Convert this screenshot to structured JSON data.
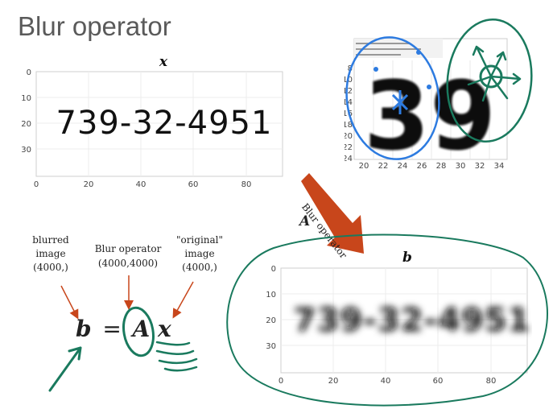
{
  "slide": {
    "title": "Blur operator",
    "top_plot": {
      "title": "x",
      "text": "739-32-4951",
      "xticks": [
        "0",
        "20",
        "40",
        "60",
        "80"
      ],
      "yticks": [
        "0",
        "10",
        "20",
        "30"
      ]
    },
    "bottom_plot": {
      "title": "b",
      "text": "739-32-4951",
      "xticks": [
        "0",
        "20",
        "40",
        "60",
        "80"
      ],
      "yticks": [
        "0",
        "10",
        "20",
        "30"
      ]
    },
    "zoom_inset": {
      "digits": "39",
      "xticks": [
        "20",
        "22",
        "24",
        "26",
        "28",
        "30",
        "32",
        "34"
      ],
      "yticks": [
        "8",
        "10",
        "12",
        "14",
        "16",
        "18",
        "20",
        "22",
        "24"
      ]
    },
    "arrow": {
      "label": "Blur operator",
      "letter": "A"
    },
    "equation": {
      "b": "b",
      "eq": "=",
      "A": "A",
      "x": "x",
      "b_caption_1": "blurred",
      "b_caption_2": "image",
      "b_caption_3": "(4000,)",
      "A_caption_1": "Blur operator",
      "A_caption_2": "(4000,4000)",
      "x_caption_1": "\"original\"",
      "x_caption_2": "image",
      "x_caption_3": "(4000,)"
    }
  },
  "colors": {
    "ink_green": "#1a7a5e",
    "ink_blue": "#2d7be0",
    "arrow_red": "#c8461b"
  }
}
